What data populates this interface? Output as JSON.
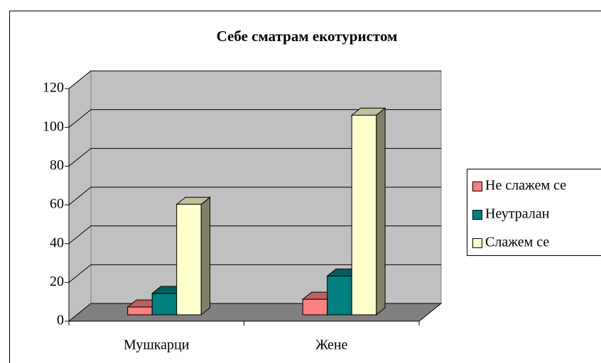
{
  "chart_data": {
    "type": "bar3d",
    "title": "Себе сматрам екотуристом",
    "categories": [
      "Мушкарци",
      "Жене"
    ],
    "series": [
      {
        "name": "Не слажем се",
        "color": "#ff8080",
        "values": [
          4,
          8
        ]
      },
      {
        "name": "Неутралан",
        "color": "#008080",
        "values": [
          11,
          20
        ]
      },
      {
        "name": "Слажем се",
        "color": "#ffffcc",
        "values": [
          57,
          103
        ]
      }
    ],
    "ylim": [
      0,
      120
    ],
    "yticks": [
      0,
      20,
      40,
      60,
      80,
      100,
      120
    ],
    "grid": true,
    "legend": "right"
  }
}
